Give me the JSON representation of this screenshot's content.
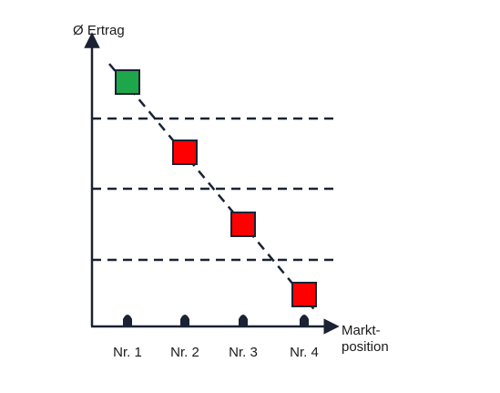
{
  "axes": {
    "y_label": "Ø Ertrag",
    "x_label": [
      "Markt-",
      "position"
    ]
  },
  "positions": [
    {
      "label": "Nr. 1",
      "color": "#1ea64b"
    },
    {
      "label": "Nr. 2",
      "color": "#ff0000"
    },
    {
      "label": "Nr. 3",
      "color": "#ff0000"
    },
    {
      "label": "Nr. 4",
      "color": "#ff0000"
    }
  ]
}
